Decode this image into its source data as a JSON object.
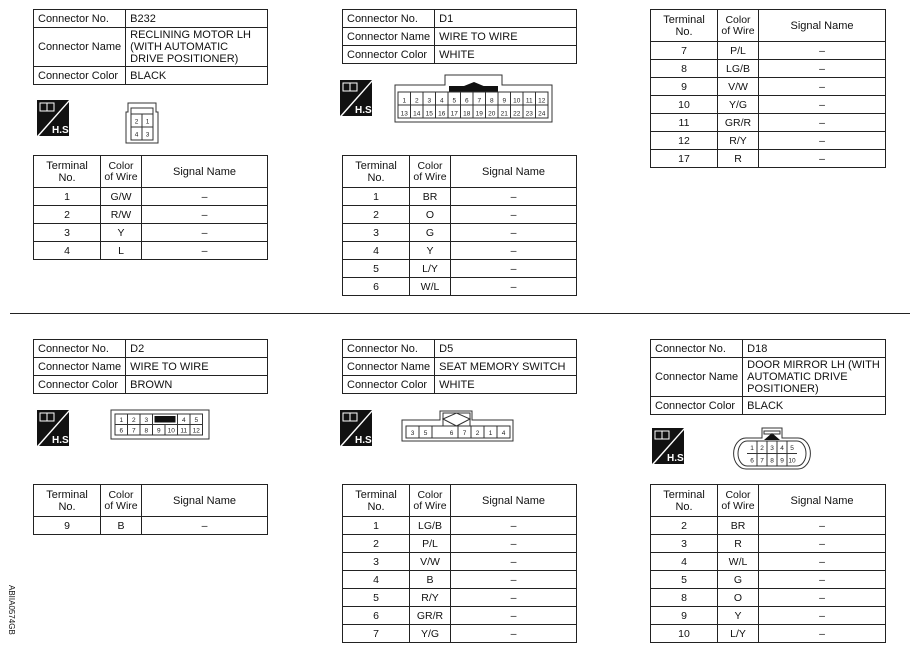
{
  "labels": {
    "connector_no": "Connector No.",
    "connector_name": "Connector Name",
    "connector_color": "Connector Color",
    "terminal_no": "Terminal No.",
    "color_of_wire": "Color of Wire",
    "signal_name": "Signal Name",
    "hs_badge": "H.S."
  },
  "figure_code": "ABIIA0574GB",
  "connectors": [
    {
      "no": "B232",
      "name": "RECLINING MOTOR LH (WITH AUTOMATIC DRIVE POSITIONER)",
      "color": "BLACK",
      "pins": [
        [
          "2",
          "1"
        ],
        [
          "4",
          "3"
        ]
      ],
      "terminals": [
        {
          "t": "1",
          "c": "G/W",
          "s": "–"
        },
        {
          "t": "2",
          "c": "R/W",
          "s": "–"
        },
        {
          "t": "3",
          "c": "Y",
          "s": "–"
        },
        {
          "t": "4",
          "c": "L",
          "s": "–"
        }
      ]
    },
    {
      "no": "D1",
      "name": "WIRE TO WIRE",
      "color": "WHITE",
      "pins": [
        [
          "1",
          "2",
          "3",
          "4",
          "5",
          "6",
          "7",
          "8",
          "9",
          "10",
          "11",
          "12"
        ],
        [
          "13",
          "14",
          "15",
          "16",
          "17",
          "18",
          "19",
          "20",
          "21",
          "22",
          "23",
          "24"
        ]
      ],
      "terminals": [
        {
          "t": "1",
          "c": "BR",
          "s": "–"
        },
        {
          "t": "2",
          "c": "O",
          "s": "–"
        },
        {
          "t": "3",
          "c": "G",
          "s": "–"
        },
        {
          "t": "4",
          "c": "Y",
          "s": "–"
        },
        {
          "t": "5",
          "c": "L/Y",
          "s": "–"
        },
        {
          "t": "6",
          "c": "W/L",
          "s": "–"
        },
        {
          "t": "7",
          "c": "P/L",
          "s": "–"
        },
        {
          "t": "8",
          "c": "LG/B",
          "s": "–"
        },
        {
          "t": "9",
          "c": "V/W",
          "s": "–"
        },
        {
          "t": "10",
          "c": "Y/G",
          "s": "–"
        },
        {
          "t": "11",
          "c": "GR/R",
          "s": "–"
        },
        {
          "t": "12",
          "c": "R/Y",
          "s": "–"
        },
        {
          "t": "17",
          "c": "R",
          "s": "–"
        }
      ]
    },
    {
      "no": "D2",
      "name": "WIRE TO WIRE",
      "color": "BROWN",
      "pins": [
        [
          "1",
          "2",
          "3",
          "",
          "4",
          "5"
        ],
        [
          "6",
          "7",
          "8",
          "9",
          "10",
          "11",
          "12"
        ]
      ],
      "terminals": [
        {
          "t": "9",
          "c": "B",
          "s": "–"
        }
      ]
    },
    {
      "no": "D5",
      "name": "SEAT MEMORY SWITCH",
      "color": "WHITE",
      "pins": [
        [
          "3",
          "5",
          "",
          "6",
          "7",
          "2",
          "1",
          "4"
        ]
      ],
      "terminals": [
        {
          "t": "1",
          "c": "LG/B",
          "s": "–"
        },
        {
          "t": "2",
          "c": "P/L",
          "s": "–"
        },
        {
          "t": "3",
          "c": "V/W",
          "s": "–"
        },
        {
          "t": "4",
          "c": "B",
          "s": "–"
        },
        {
          "t": "5",
          "c": "R/Y",
          "s": "–"
        },
        {
          "t": "6",
          "c": "GR/R",
          "s": "–"
        },
        {
          "t": "7",
          "c": "Y/G",
          "s": "–"
        }
      ]
    },
    {
      "no": "D18",
      "name": "DOOR MIRROR LH (WITH AUTOMATIC DRIVE POSITIONER)",
      "color": "BLACK",
      "pins": [
        [
          "1",
          "2",
          "3",
          "4",
          "5"
        ],
        [
          "6",
          "7",
          "8",
          "9",
          "10"
        ]
      ],
      "terminals": [
        {
          "t": "2",
          "c": "BR",
          "s": "–"
        },
        {
          "t": "3",
          "c": "R",
          "s": "–"
        },
        {
          "t": "4",
          "c": "W/L",
          "s": "–"
        },
        {
          "t": "5",
          "c": "G",
          "s": "–"
        },
        {
          "t": "8",
          "c": "O",
          "s": "–"
        },
        {
          "t": "9",
          "c": "Y",
          "s": "–"
        },
        {
          "t": "10",
          "c": "L/Y",
          "s": "–"
        }
      ]
    }
  ]
}
